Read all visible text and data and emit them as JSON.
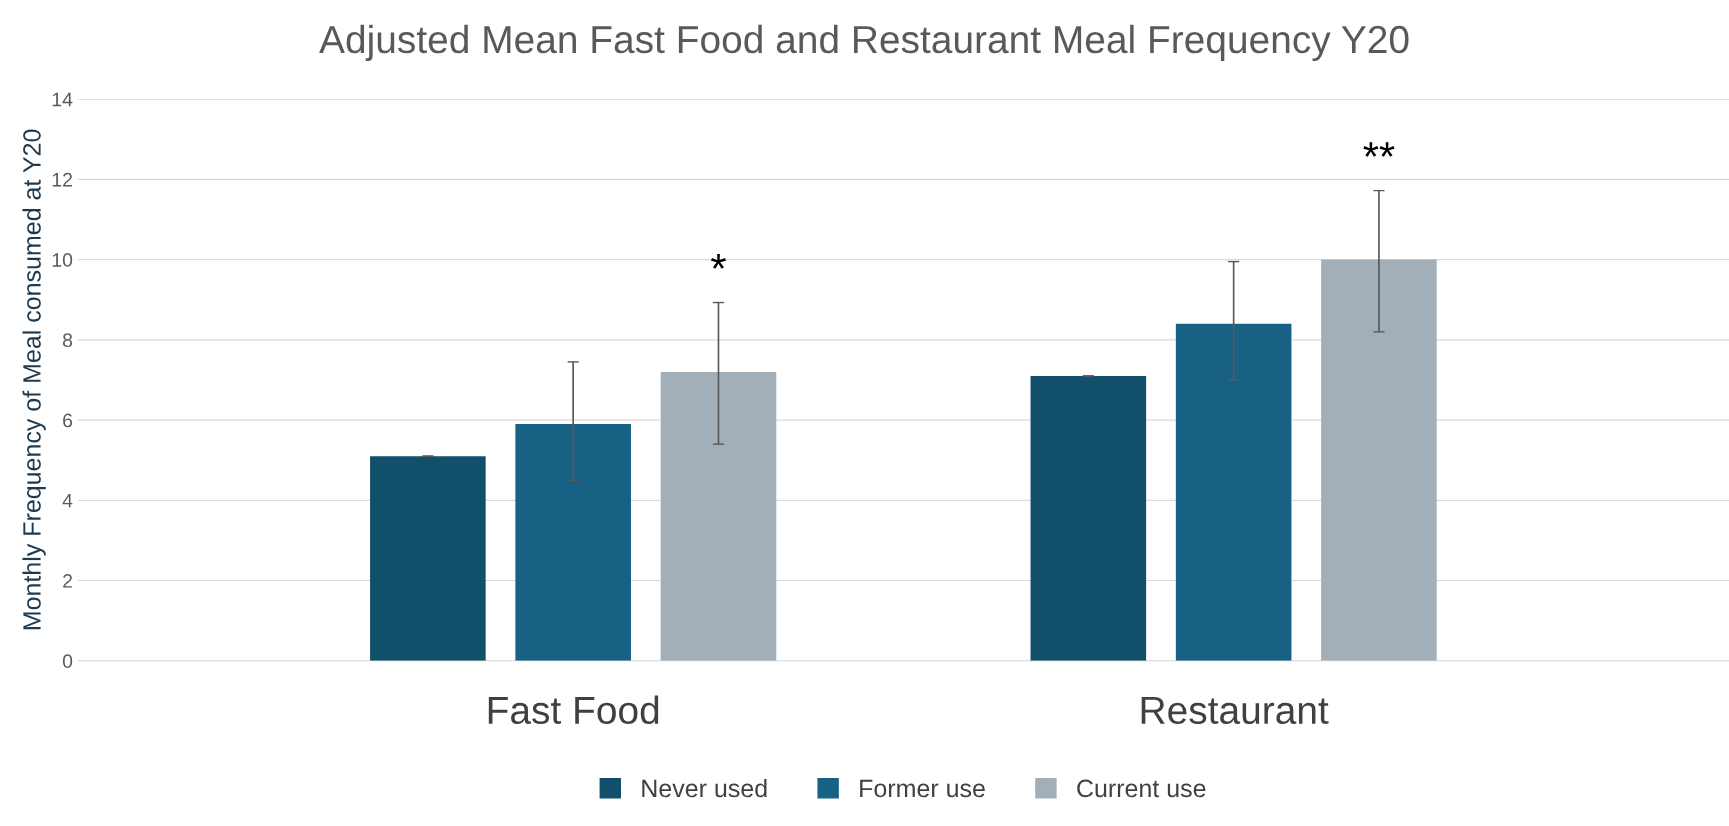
{
  "chart_data": {
    "type": "bar",
    "title": "Adjusted Mean Fast Food and Restaurant Meal Frequency Y20",
    "ylabel": "Monthly Frequency of Meal consumed at Y20",
    "categories": [
      "Fast Food",
      "Restaurant"
    ],
    "series": [
      {
        "name": "Never used",
        "color": "#114f6b",
        "values": [
          5.1,
          7.1
        ],
        "errors": [
          0,
          0
        ]
      },
      {
        "name": "Former use",
        "color": "#176184",
        "values": [
          5.9,
          8.4
        ],
        "errors": [
          [
            4.5,
            7.45
          ],
          [
            7.0,
            9.95
          ]
        ]
      },
      {
        "name": "Current use",
        "color": "#a2afb9",
        "values": [
          7.2,
          10.0
        ],
        "errors": [
          [
            5.4,
            8.93
          ],
          [
            8.2,
            11.72
          ]
        ]
      }
    ],
    "ylim": [
      0,
      14
    ],
    "yticks": [
      0,
      2,
      4,
      6,
      8,
      10,
      12,
      14
    ],
    "grid": "y",
    "legend": "bottom",
    "annotations": [
      "*",
      "**"
    ]
  }
}
